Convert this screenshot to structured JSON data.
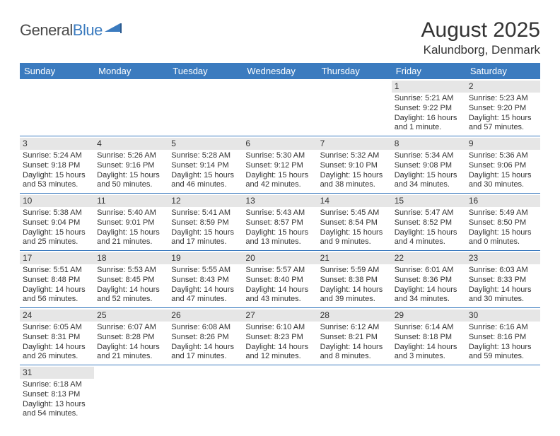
{
  "logo": {
    "text1": "General",
    "text2": "Blue"
  },
  "title": "August 2025",
  "location": "Kalundborg, Denmark",
  "colors": {
    "header_bg": "#3b7bbf",
    "header_text": "#ffffff",
    "daynum_bg": "#e6e6e6",
    "text": "#333333",
    "rule": "#3b7bbf",
    "page_bg": "#ffffff"
  },
  "typography": {
    "title_fontsize": 30,
    "location_fontsize": 17,
    "day_header_fontsize": 13,
    "body_fontsize": 11
  },
  "day_headers": [
    "Sunday",
    "Monday",
    "Tuesday",
    "Wednesday",
    "Thursday",
    "Friday",
    "Saturday"
  ],
  "weeks": [
    [
      null,
      null,
      null,
      null,
      null,
      {
        "n": "1",
        "sr": "Sunrise: 5:21 AM",
        "ss": "Sunset: 9:22 PM",
        "dl1": "Daylight: 16 hours",
        "dl2": "and 1 minute."
      },
      {
        "n": "2",
        "sr": "Sunrise: 5:23 AM",
        "ss": "Sunset: 9:20 PM",
        "dl1": "Daylight: 15 hours",
        "dl2": "and 57 minutes."
      }
    ],
    [
      {
        "n": "3",
        "sr": "Sunrise: 5:24 AM",
        "ss": "Sunset: 9:18 PM",
        "dl1": "Daylight: 15 hours",
        "dl2": "and 53 minutes."
      },
      {
        "n": "4",
        "sr": "Sunrise: 5:26 AM",
        "ss": "Sunset: 9:16 PM",
        "dl1": "Daylight: 15 hours",
        "dl2": "and 50 minutes."
      },
      {
        "n": "5",
        "sr": "Sunrise: 5:28 AM",
        "ss": "Sunset: 9:14 PM",
        "dl1": "Daylight: 15 hours",
        "dl2": "and 46 minutes."
      },
      {
        "n": "6",
        "sr": "Sunrise: 5:30 AM",
        "ss": "Sunset: 9:12 PM",
        "dl1": "Daylight: 15 hours",
        "dl2": "and 42 minutes."
      },
      {
        "n": "7",
        "sr": "Sunrise: 5:32 AM",
        "ss": "Sunset: 9:10 PM",
        "dl1": "Daylight: 15 hours",
        "dl2": "and 38 minutes."
      },
      {
        "n": "8",
        "sr": "Sunrise: 5:34 AM",
        "ss": "Sunset: 9:08 PM",
        "dl1": "Daylight: 15 hours",
        "dl2": "and 34 minutes."
      },
      {
        "n": "9",
        "sr": "Sunrise: 5:36 AM",
        "ss": "Sunset: 9:06 PM",
        "dl1": "Daylight: 15 hours",
        "dl2": "and 30 minutes."
      }
    ],
    [
      {
        "n": "10",
        "sr": "Sunrise: 5:38 AM",
        "ss": "Sunset: 9:04 PM",
        "dl1": "Daylight: 15 hours",
        "dl2": "and 25 minutes."
      },
      {
        "n": "11",
        "sr": "Sunrise: 5:40 AM",
        "ss": "Sunset: 9:01 PM",
        "dl1": "Daylight: 15 hours",
        "dl2": "and 21 minutes."
      },
      {
        "n": "12",
        "sr": "Sunrise: 5:41 AM",
        "ss": "Sunset: 8:59 PM",
        "dl1": "Daylight: 15 hours",
        "dl2": "and 17 minutes."
      },
      {
        "n": "13",
        "sr": "Sunrise: 5:43 AM",
        "ss": "Sunset: 8:57 PM",
        "dl1": "Daylight: 15 hours",
        "dl2": "and 13 minutes."
      },
      {
        "n": "14",
        "sr": "Sunrise: 5:45 AM",
        "ss": "Sunset: 8:54 PM",
        "dl1": "Daylight: 15 hours",
        "dl2": "and 9 minutes."
      },
      {
        "n": "15",
        "sr": "Sunrise: 5:47 AM",
        "ss": "Sunset: 8:52 PM",
        "dl1": "Daylight: 15 hours",
        "dl2": "and 4 minutes."
      },
      {
        "n": "16",
        "sr": "Sunrise: 5:49 AM",
        "ss": "Sunset: 8:50 PM",
        "dl1": "Daylight: 15 hours",
        "dl2": "and 0 minutes."
      }
    ],
    [
      {
        "n": "17",
        "sr": "Sunrise: 5:51 AM",
        "ss": "Sunset: 8:48 PM",
        "dl1": "Daylight: 14 hours",
        "dl2": "and 56 minutes."
      },
      {
        "n": "18",
        "sr": "Sunrise: 5:53 AM",
        "ss": "Sunset: 8:45 PM",
        "dl1": "Daylight: 14 hours",
        "dl2": "and 52 minutes."
      },
      {
        "n": "19",
        "sr": "Sunrise: 5:55 AM",
        "ss": "Sunset: 8:43 PM",
        "dl1": "Daylight: 14 hours",
        "dl2": "and 47 minutes."
      },
      {
        "n": "20",
        "sr": "Sunrise: 5:57 AM",
        "ss": "Sunset: 8:40 PM",
        "dl1": "Daylight: 14 hours",
        "dl2": "and 43 minutes."
      },
      {
        "n": "21",
        "sr": "Sunrise: 5:59 AM",
        "ss": "Sunset: 8:38 PM",
        "dl1": "Daylight: 14 hours",
        "dl2": "and 39 minutes."
      },
      {
        "n": "22",
        "sr": "Sunrise: 6:01 AM",
        "ss": "Sunset: 8:36 PM",
        "dl1": "Daylight: 14 hours",
        "dl2": "and 34 minutes."
      },
      {
        "n": "23",
        "sr": "Sunrise: 6:03 AM",
        "ss": "Sunset: 8:33 PM",
        "dl1": "Daylight: 14 hours",
        "dl2": "and 30 minutes."
      }
    ],
    [
      {
        "n": "24",
        "sr": "Sunrise: 6:05 AM",
        "ss": "Sunset: 8:31 PM",
        "dl1": "Daylight: 14 hours",
        "dl2": "and 26 minutes."
      },
      {
        "n": "25",
        "sr": "Sunrise: 6:07 AM",
        "ss": "Sunset: 8:28 PM",
        "dl1": "Daylight: 14 hours",
        "dl2": "and 21 minutes."
      },
      {
        "n": "26",
        "sr": "Sunrise: 6:08 AM",
        "ss": "Sunset: 8:26 PM",
        "dl1": "Daylight: 14 hours",
        "dl2": "and 17 minutes."
      },
      {
        "n": "27",
        "sr": "Sunrise: 6:10 AM",
        "ss": "Sunset: 8:23 PM",
        "dl1": "Daylight: 14 hours",
        "dl2": "and 12 minutes."
      },
      {
        "n": "28",
        "sr": "Sunrise: 6:12 AM",
        "ss": "Sunset: 8:21 PM",
        "dl1": "Daylight: 14 hours",
        "dl2": "and 8 minutes."
      },
      {
        "n": "29",
        "sr": "Sunrise: 6:14 AM",
        "ss": "Sunset: 8:18 PM",
        "dl1": "Daylight: 14 hours",
        "dl2": "and 3 minutes."
      },
      {
        "n": "30",
        "sr": "Sunrise: 6:16 AM",
        "ss": "Sunset: 8:16 PM",
        "dl1": "Daylight: 13 hours",
        "dl2": "and 59 minutes."
      }
    ],
    [
      {
        "n": "31",
        "sr": "Sunrise: 6:18 AM",
        "ss": "Sunset: 8:13 PM",
        "dl1": "Daylight: 13 hours",
        "dl2": "and 54 minutes."
      },
      null,
      null,
      null,
      null,
      null,
      null
    ]
  ]
}
